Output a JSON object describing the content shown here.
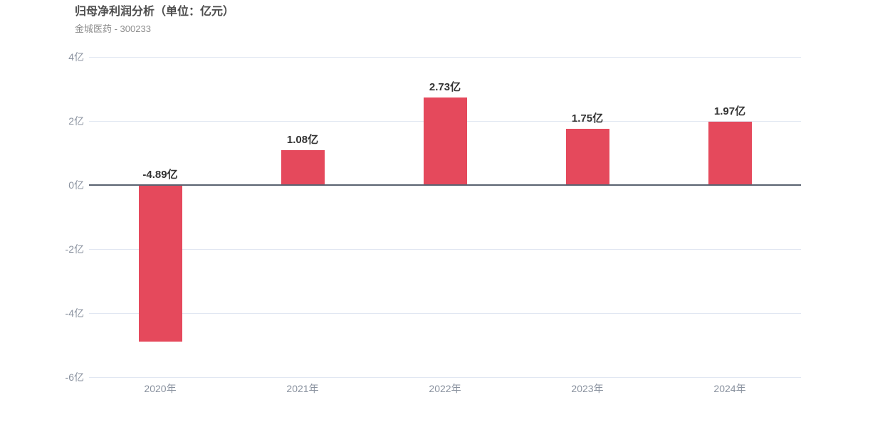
{
  "header": {
    "title": "归母净利润分析（单位：亿元）",
    "subtitle": "金城医药 - 300233"
  },
  "chart_data": {
    "type": "bar",
    "title": "归母净利润分析（单位：亿元）",
    "subtitle": "金城医药 - 300233",
    "categories": [
      "2020年",
      "2021年",
      "2022年",
      "2023年",
      "2024年"
    ],
    "values": [
      -4.89,
      1.08,
      2.73,
      1.75,
      1.97
    ],
    "value_labels": [
      "-4.89亿",
      "1.08亿",
      "2.73亿",
      "1.75亿",
      "1.97亿"
    ],
    "unit": "亿",
    "xlabel": "",
    "ylabel": "",
    "ylim": [
      -6,
      4
    ],
    "y_ticks": [
      {
        "value": 4,
        "label": "4亿"
      },
      {
        "value": 2,
        "label": "2亿"
      },
      {
        "value": 0,
        "label": "0亿"
      },
      {
        "value": -2,
        "label": "-2亿"
      },
      {
        "value": -4,
        "label": "-4亿"
      },
      {
        "value": -6,
        "label": "-6亿"
      }
    ],
    "grid": true,
    "legend": "none",
    "colors": {
      "bar": "#e5495c",
      "grid_line": "#e1e7f2",
      "zero_line": "#5a6270",
      "value_label": "#333333",
      "axis_label": "#8a929f"
    }
  }
}
